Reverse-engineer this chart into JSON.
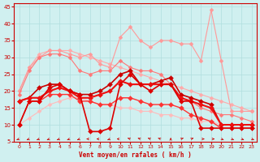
{
  "x": [
    0,
    1,
    2,
    3,
    4,
    5,
    6,
    7,
    8,
    9,
    10,
    11,
    12,
    13,
    14,
    15,
    16,
    17,
    18,
    19,
    20,
    21,
    22,
    23
  ],
  "series": [
    {
      "name": "linear_top",
      "color": "#ffaaaa",
      "linewidth": 0.8,
      "markersize": 2.5,
      "values": [
        20,
        27,
        31,
        32,
        32,
        32,
        31,
        30,
        29,
        28,
        27,
        26,
        25,
        24,
        23,
        22,
        21,
        20,
        19,
        18,
        17,
        16,
        15,
        14
      ]
    },
    {
      "name": "rafales_max",
      "color": "#ff9999",
      "linewidth": 0.8,
      "markersize": 2.5,
      "values": [
        20,
        27,
        30,
        32,
        32,
        31,
        30,
        31,
        28,
        27,
        36,
        39,
        35,
        33,
        35,
        35,
        34,
        34,
        29,
        44,
        29,
        14,
        14,
        14
      ]
    },
    {
      "name": "rafales_moy",
      "color": "#ff7777",
      "linewidth": 0.8,
      "markersize": 2.5,
      "values": [
        19,
        26,
        30,
        31,
        31,
        30,
        26,
        25,
        26,
        26,
        29,
        27,
        26,
        26,
        25,
        22,
        18,
        17,
        15,
        14,
        13,
        13,
        12,
        11
      ]
    },
    {
      "name": "linear_bottom",
      "color": "#ffbbbb",
      "linewidth": 0.8,
      "markersize": 2.5,
      "values": [
        10,
        12,
        14,
        16,
        17,
        18,
        18,
        17,
        16,
        16,
        15,
        15,
        14,
        14,
        13,
        13,
        12,
        12,
        11,
        11,
        10,
        10,
        10,
        10
      ]
    },
    {
      "name": "vent_max",
      "color": "#cc0000",
      "linewidth": 1.2,
      "markersize": 3,
      "values": [
        17,
        18,
        21,
        22,
        22,
        20,
        19,
        19,
        20,
        22,
        25,
        26,
        22,
        22,
        23,
        24,
        19,
        18,
        17,
        16,
        10,
        10,
        10,
        10
      ]
    },
    {
      "name": "vent_moy",
      "color": "#ee1111",
      "linewidth": 1.5,
      "markersize": 3,
      "values": [
        17,
        18,
        18,
        20,
        21,
        20,
        18,
        18,
        19,
        20,
        23,
        22,
        22,
        22,
        22,
        22,
        18,
        17,
        16,
        15,
        10,
        10,
        10,
        10
      ]
    },
    {
      "name": "vent_min",
      "color": "#ff3333",
      "linewidth": 1.0,
      "markersize": 3,
      "values": [
        10,
        17,
        17,
        19,
        19,
        19,
        17,
        17,
        16,
        16,
        18,
        18,
        17,
        16,
        16,
        16,
        15,
        13,
        12,
        11,
        9,
        9,
        9,
        9
      ]
    },
    {
      "name": "vent_drop",
      "color": "#dd0000",
      "linewidth": 1.2,
      "markersize": 3,
      "values": [
        10,
        17,
        17,
        21,
        22,
        20,
        19,
        8,
        8,
        9,
        22,
        25,
        22,
        20,
        22,
        22,
        17,
        17,
        9,
        9,
        9,
        9,
        9,
        9
      ]
    }
  ],
  "xlabel": "Vent moyen/en rafales ( km/h )",
  "ylabel": "",
  "ylim": [
    5,
    46
  ],
  "xlim": [
    -0.5,
    23.5
  ],
  "yticks": [
    5,
    10,
    15,
    20,
    25,
    30,
    35,
    40,
    45
  ],
  "xticks": [
    0,
    1,
    2,
    3,
    4,
    5,
    6,
    7,
    8,
    9,
    10,
    11,
    12,
    13,
    14,
    15,
    16,
    17,
    18,
    19,
    20,
    21,
    22,
    23
  ],
  "bg_color": "#d0f0f0",
  "grid_color": "#b0dede",
  "arrow_color": "#cc0000"
}
